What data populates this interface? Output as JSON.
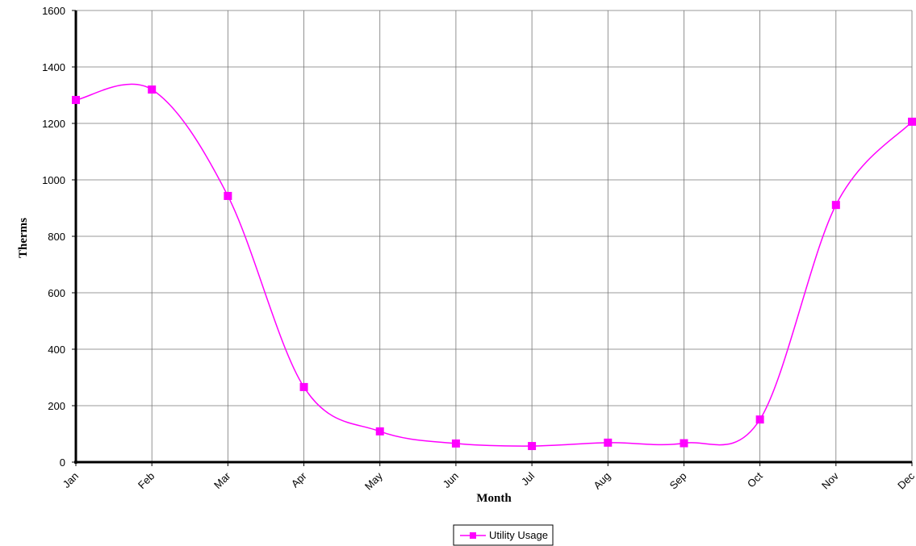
{
  "chart_data": {
    "type": "line",
    "x_label": "Month",
    "y_label": "Therms",
    "categories": [
      "Jan",
      "Feb",
      "Mar",
      "Apr",
      "May",
      "Jun",
      "Jul",
      "Aug",
      "Sep",
      "Oct",
      "Nov",
      "Dec"
    ],
    "series": [
      {
        "name": "Utility Usage",
        "color": "#ff00ff",
        "values": [
          1283,
          1320,
          943,
          266,
          109,
          66,
          57,
          69,
          67,
          151,
          911,
          1206
        ]
      }
    ],
    "ylim": [
      0,
      1600
    ],
    "yticks": [
      0,
      200,
      400,
      600,
      800,
      1000,
      1200,
      1400,
      1600
    ],
    "grid": true,
    "legend": "bottom"
  }
}
